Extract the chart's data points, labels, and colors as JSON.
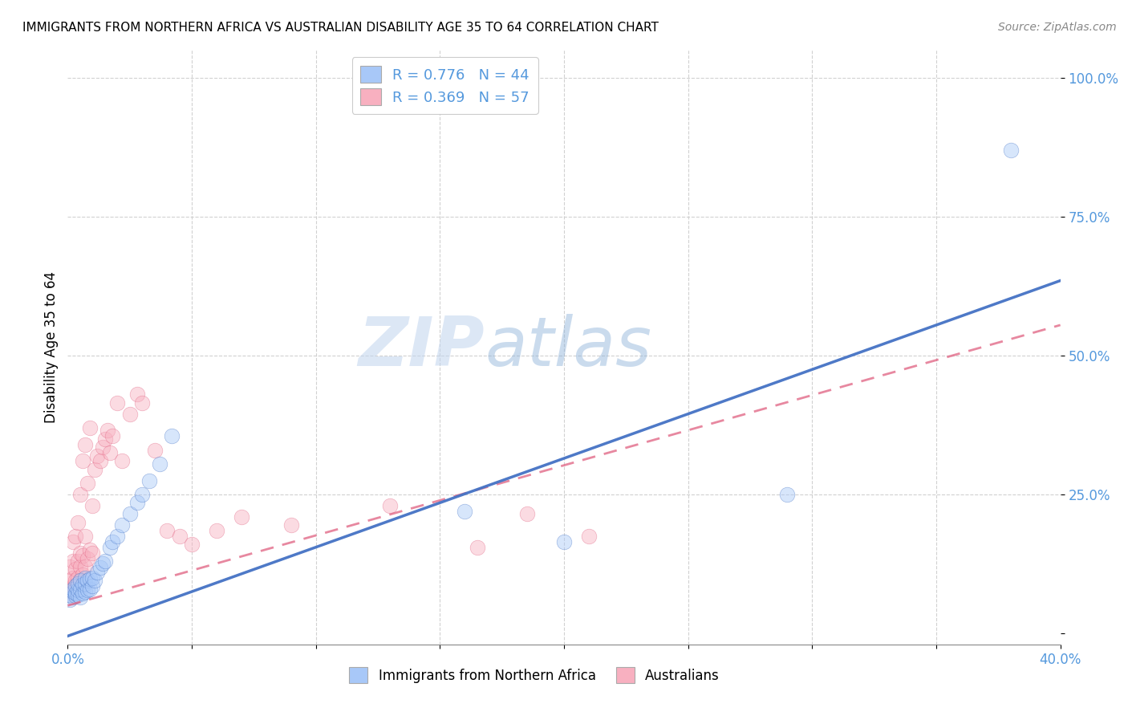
{
  "title": "IMMIGRANTS FROM NORTHERN AFRICA VS AUSTRALIAN DISABILITY AGE 35 TO 64 CORRELATION CHART",
  "source": "Source: ZipAtlas.com",
  "ylabel": "Disability Age 35 to 64",
  "xlim": [
    0.0,
    0.4
  ],
  "ylim": [
    -0.02,
    1.05
  ],
  "legend_items": [
    {
      "color": "#a8c8f8",
      "R": "0.776",
      "N": 44,
      "label": "Immigrants from Northern Africa"
    },
    {
      "color": "#f8b0c0",
      "R": "0.369",
      "N": 57,
      "label": "Australians"
    }
  ],
  "blue_scatter_x": [
    0.001,
    0.001,
    0.002,
    0.002,
    0.002,
    0.003,
    0.003,
    0.003,
    0.004,
    0.004,
    0.004,
    0.005,
    0.005,
    0.005,
    0.006,
    0.006,
    0.007,
    0.007,
    0.007,
    0.008,
    0.008,
    0.009,
    0.009,
    0.01,
    0.01,
    0.011,
    0.012,
    0.013,
    0.014,
    0.015,
    0.017,
    0.018,
    0.02,
    0.022,
    0.025,
    0.028,
    0.03,
    0.033,
    0.037,
    0.042,
    0.16,
    0.2,
    0.29,
    0.38
  ],
  "blue_scatter_y": [
    0.06,
    0.07,
    0.065,
    0.075,
    0.08,
    0.068,
    0.072,
    0.085,
    0.07,
    0.078,
    0.09,
    0.065,
    0.08,
    0.095,
    0.072,
    0.088,
    0.075,
    0.09,
    0.1,
    0.078,
    0.095,
    0.08,
    0.098,
    0.085,
    0.1,
    0.095,
    0.11,
    0.118,
    0.125,
    0.13,
    0.155,
    0.165,
    0.175,
    0.195,
    0.215,
    0.235,
    0.25,
    0.275,
    0.305,
    0.355,
    0.22,
    0.165,
    0.25,
    0.87
  ],
  "pink_scatter_x": [
    0.001,
    0.001,
    0.001,
    0.001,
    0.002,
    0.002,
    0.002,
    0.002,
    0.002,
    0.003,
    0.003,
    0.003,
    0.003,
    0.004,
    0.004,
    0.004,
    0.004,
    0.005,
    0.005,
    0.005,
    0.005,
    0.006,
    0.006,
    0.006,
    0.007,
    0.007,
    0.007,
    0.008,
    0.008,
    0.009,
    0.009,
    0.01,
    0.01,
    0.011,
    0.012,
    0.013,
    0.014,
    0.015,
    0.016,
    0.017,
    0.018,
    0.02,
    0.022,
    0.025,
    0.028,
    0.03,
    0.035,
    0.04,
    0.045,
    0.05,
    0.06,
    0.07,
    0.09,
    0.13,
    0.165,
    0.185,
    0.21
  ],
  "pink_scatter_y": [
    0.07,
    0.08,
    0.095,
    0.12,
    0.075,
    0.085,
    0.1,
    0.13,
    0.165,
    0.08,
    0.095,
    0.115,
    0.175,
    0.085,
    0.1,
    0.13,
    0.2,
    0.095,
    0.12,
    0.145,
    0.25,
    0.105,
    0.14,
    0.31,
    0.12,
    0.175,
    0.34,
    0.135,
    0.27,
    0.15,
    0.37,
    0.145,
    0.23,
    0.295,
    0.32,
    0.31,
    0.335,
    0.35,
    0.365,
    0.325,
    0.355,
    0.415,
    0.31,
    0.395,
    0.43,
    0.415,
    0.33,
    0.185,
    0.175,
    0.16,
    0.185,
    0.21,
    0.195,
    0.23,
    0.155,
    0.215,
    0.175
  ],
  "blue_line_x": [
    0.0,
    0.4
  ],
  "blue_line_y": [
    -0.005,
    0.635
  ],
  "pink_line_x": [
    0.0,
    0.4
  ],
  "pink_line_y": [
    0.05,
    0.555
  ],
  "watermark_zip": "ZIP",
  "watermark_atlas": "atlas",
  "scatter_size": 180,
  "scatter_alpha": 0.45,
  "blue_color": "#4472c4",
  "pink_color": "#e06080",
  "blue_scatter_color": "#a8c8f8",
  "pink_scatter_color": "#f8b0c0",
  "grid_color": "#cccccc",
  "tick_color": "#5599dd"
}
